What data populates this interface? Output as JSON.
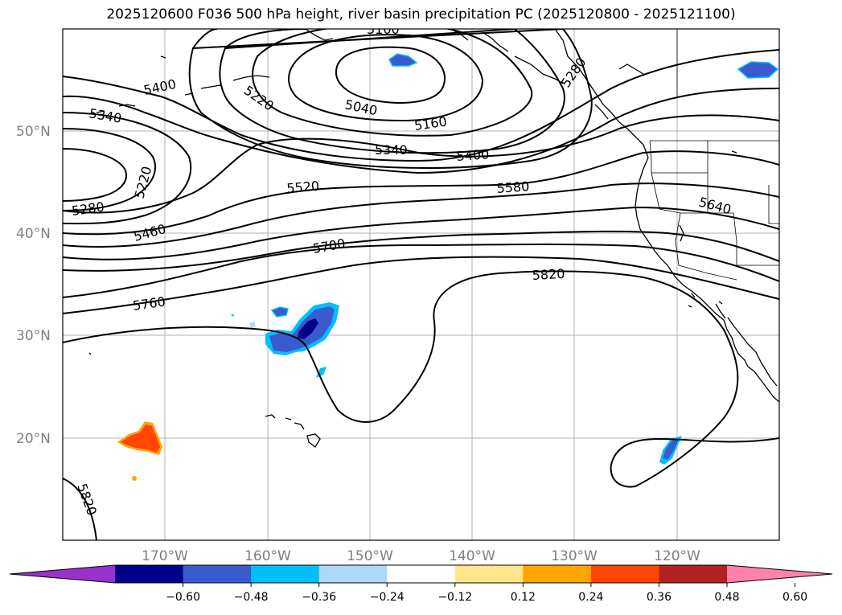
{
  "title": "2025120600 F036 500 hPa height, river basin precipitation PC (2025120800 - 2025121100)",
  "map": {
    "lat_labels": [
      "50°N",
      "40°N",
      "30°N",
      "20°N"
    ],
    "lon_labels": [
      "170°W",
      "160°W",
      "150°W",
      "140°W",
      "130°W",
      "120°W"
    ],
    "contour_labels": [
      "5400",
      "5340",
      "5220",
      "5280",
      "5460",
      "5520",
      "5700",
      "5760",
      "5040",
      "5160",
      "5340",
      "5400",
      "5580",
      "5640",
      "5820",
      "5100",
      "5280",
      "5220",
      "5820"
    ]
  },
  "colorbar": {
    "colors": [
      "#9932cc",
      "#00008b",
      "#3a5bcf",
      "#00bfff",
      "#add8f6",
      "#ffffff",
      "#fee78a",
      "#ffa500",
      "#ff4500",
      "#b22222",
      "#ff82ab"
    ],
    "ticks": [
      "−0.60",
      "−0.48",
      "−0.36",
      "−0.24",
      "−0.12",
      "0.12",
      "0.24",
      "0.36",
      "0.48",
      "0.60"
    ]
  }
}
